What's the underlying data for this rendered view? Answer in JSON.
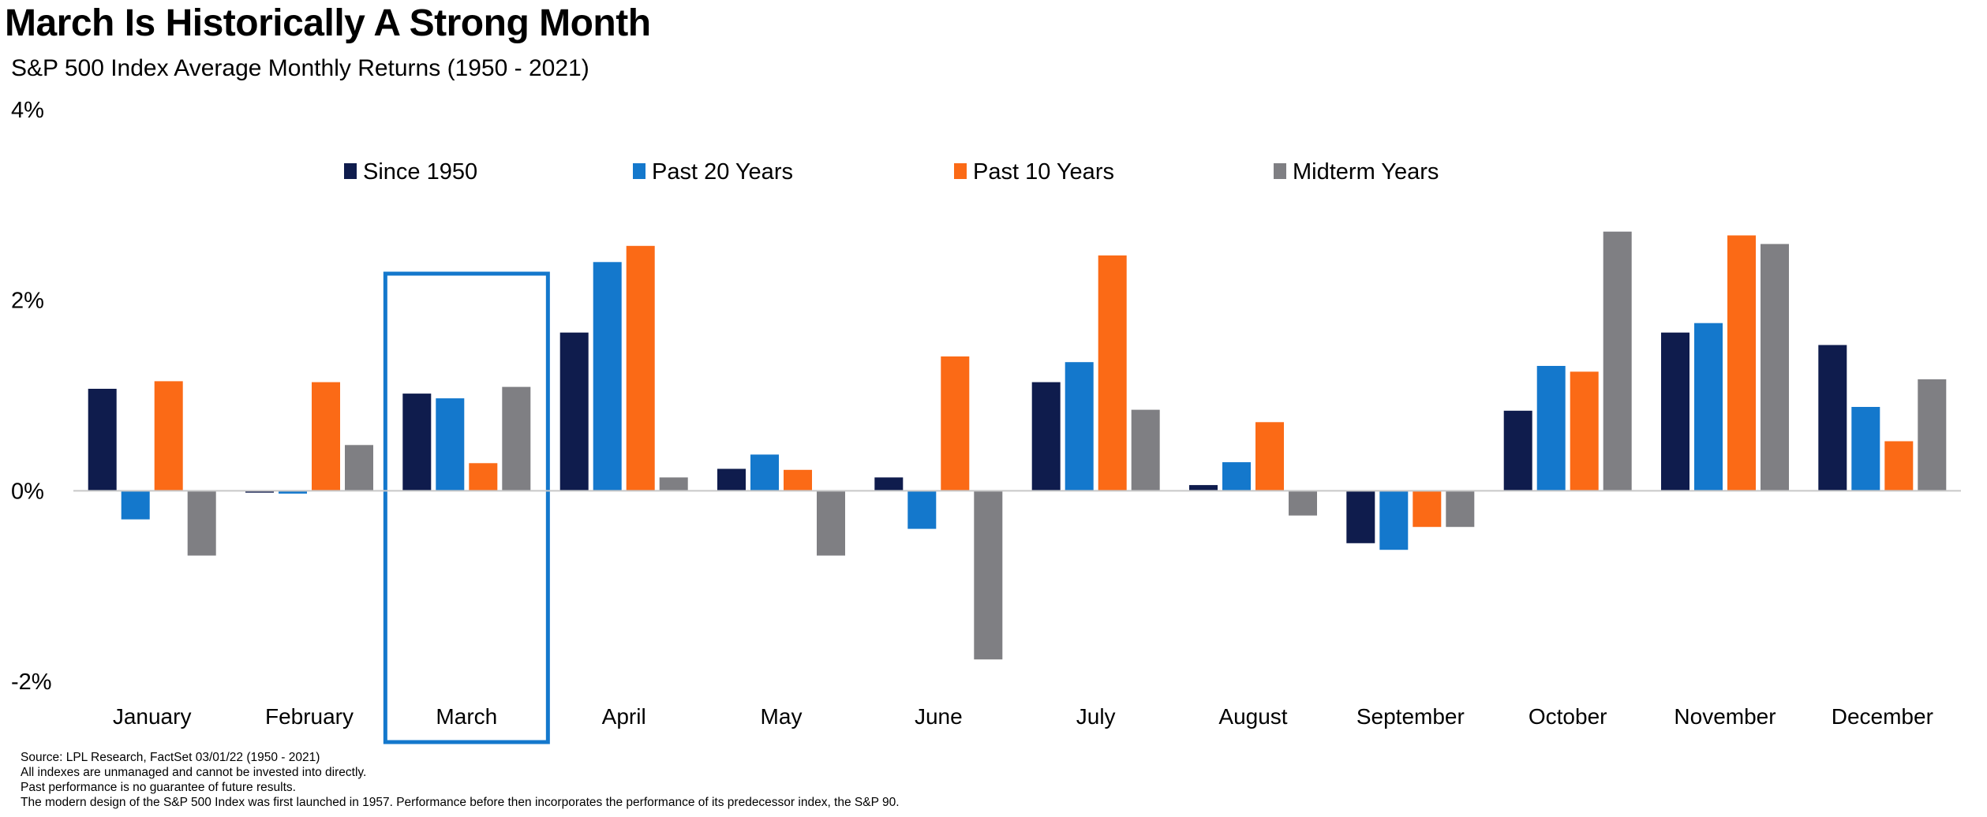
{
  "header": {
    "title": "March Is Historically A Strong Month",
    "subtitle": "S&P 500 Index Average Monthly Returns (1950 - 2021)"
  },
  "chart_data": {
    "type": "bar",
    "categories": [
      "January",
      "February",
      "March",
      "April",
      "May",
      "June",
      "July",
      "August",
      "September",
      "October",
      "November",
      "December"
    ],
    "series": [
      {
        "name": "Since 1950",
        "color": "#0f1c4d",
        "values": [
          1.07,
          -0.02,
          1.02,
          1.66,
          0.23,
          0.14,
          1.14,
          0.06,
          -0.55,
          0.84,
          1.66,
          1.53
        ]
      },
      {
        "name": "Past 20 Years",
        "color": "#1478cc",
        "values": [
          -0.3,
          -0.03,
          0.97,
          2.4,
          0.38,
          -0.4,
          1.35,
          0.3,
          -0.62,
          1.31,
          1.76,
          0.88
        ]
      },
      {
        "name": "Past 10 Years",
        "color": "#fb6a16",
        "values": [
          1.15,
          1.14,
          0.29,
          2.57,
          0.22,
          1.41,
          2.47,
          0.72,
          -0.38,
          1.25,
          2.68,
          0.52
        ]
      },
      {
        "name": "Midterm Years",
        "color": "#7f7f83",
        "values": [
          -0.68,
          0.48,
          1.09,
          0.14,
          -0.68,
          -1.77,
          0.85,
          -0.26,
          -0.38,
          2.72,
          2.59,
          1.17
        ]
      }
    ],
    "yticks": [
      "4%",
      "2%",
      "0%",
      "-2%"
    ],
    "ytick_values": [
      4,
      2,
      0,
      -2
    ],
    "ylim": [
      -2,
      4
    ],
    "grid": false,
    "legend_position": "top",
    "highlight_category": "March",
    "highlight_color": "#1478cc",
    "axis_color": "#c8c8c8"
  },
  "footnotes": [
    "Source: LPL Research, FactSet 03/01/22  (1950 - 2021)",
    "All indexes are unmanaged  and cannot be invested  into directly.",
    "Past performance is no guarantee  of future results.",
    "The modern design of the S&P 500 Index was first launched  in 1957. Performance before then incorporates the performance of its  predecessor index, the S&P 90."
  ]
}
